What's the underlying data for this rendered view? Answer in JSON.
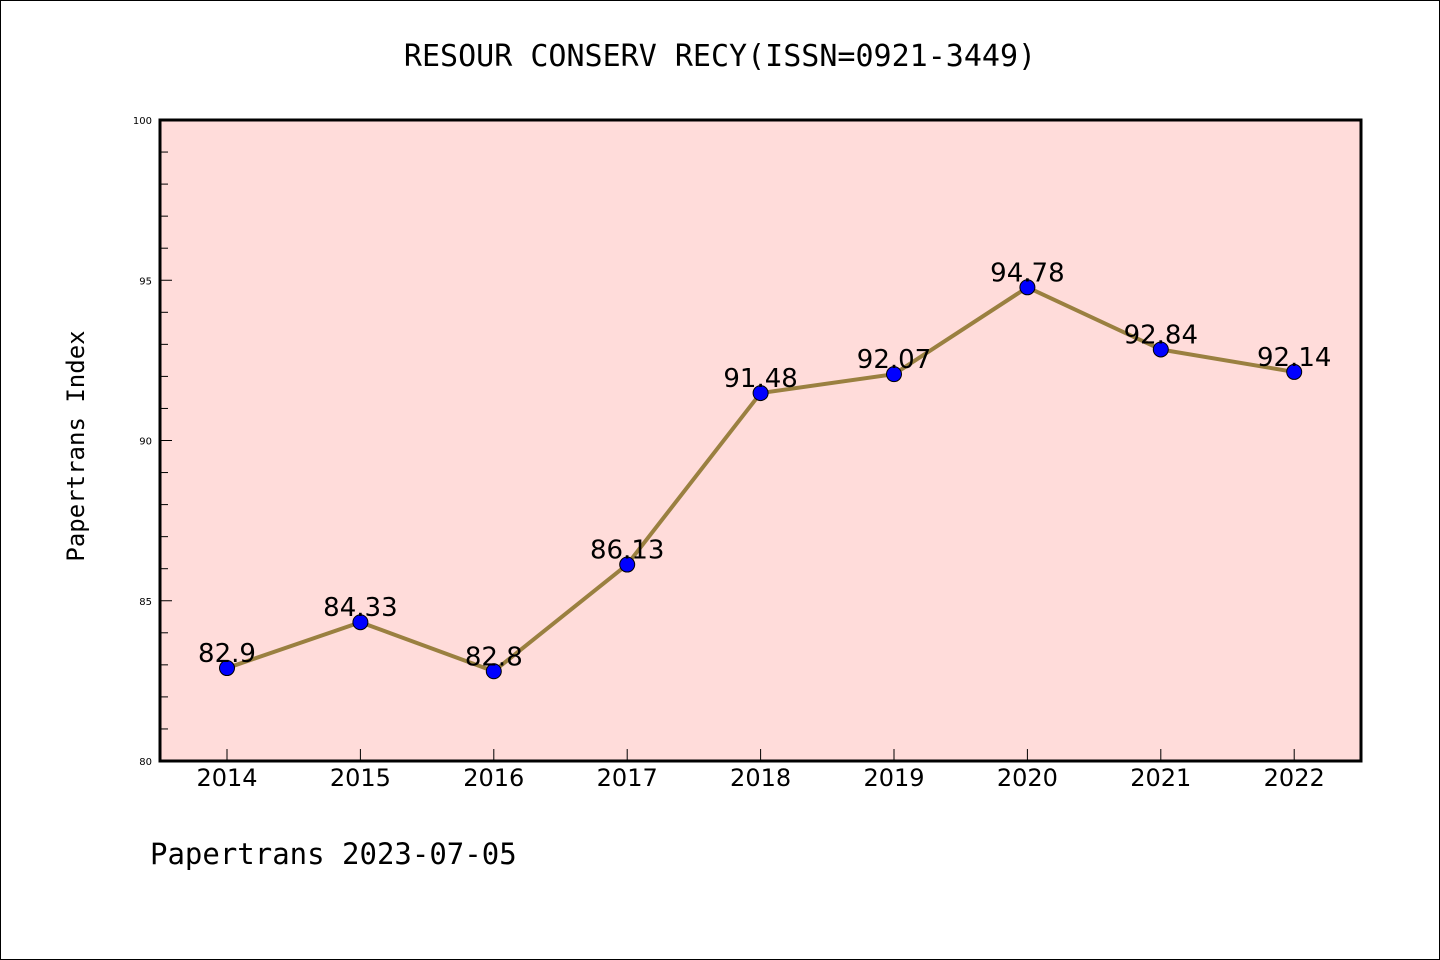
{
  "chart_data": {
    "type": "line",
    "title": "RESOUR CONSERV RECY(ISSN=0921-3449)",
    "ylabel": "Papertrans Index",
    "xlabel": "",
    "categories": [
      "2014",
      "2015",
      "2016",
      "2017",
      "2018",
      "2019",
      "2020",
      "2021",
      "2022"
    ],
    "values": [
      82.9,
      84.33,
      82.8,
      86.13,
      91.48,
      92.07,
      94.78,
      92.84,
      92.14
    ],
    "data_labels": [
      "82.9",
      "84.33",
      "82.8",
      "86.13",
      "91.48",
      "92.07",
      "94.78",
      "92.84",
      "92.14"
    ],
    "ylim": [
      80,
      100
    ],
    "yticks": [
      "80",
      "85",
      "90",
      "95",
      "100"
    ],
    "grid": false,
    "legend": "none",
    "colors": {
      "plot_background": "#FFDCDA",
      "line": "#9A8040",
      "marker": "#0000FF"
    }
  },
  "footer": {
    "text": "Papertrans 2023-07-05"
  }
}
